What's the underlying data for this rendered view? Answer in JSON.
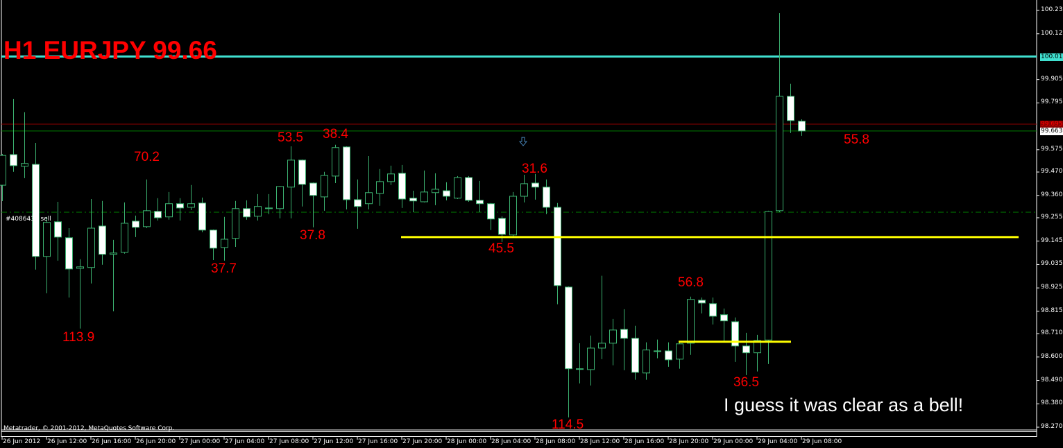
{
  "title": "H1 EURJPY 99.66",
  "copyright": "Metatrader, © 2001-2012, MetaQuotes Software Corp.",
  "order_label": "#4086432 sell",
  "comment": "I guess it was clear as a bell!",
  "colors": {
    "background": "#000000",
    "candle_outline": "#3cb371",
    "bear_fill": "#ffffff",
    "bull_fill": "#000000",
    "annotation": "#ff0000",
    "level_cyan": "#40e0d0",
    "level_red": "#8b0000",
    "bid_line": "#008000",
    "trendline": "#ffff00",
    "order_line": "#008000",
    "arrow": "#4682b4"
  },
  "annotations": [
    "70.2",
    "113.9",
    "53.5",
    "38.4",
    "37.8",
    "37.7",
    "31.6",
    "45.5",
    "114.5",
    "56.8",
    "36.5",
    "55.8"
  ],
  "chart_data": {
    "type": "candlestick",
    "symbol": "EURJPY",
    "timeframe": "H1",
    "ylim": [
      98.27,
      100.23
    ],
    "y_ticks": [
      "100.230",
      "100.120",
      "99.905",
      "99.795",
      "99.575",
      "99.470",
      "99.360",
      "99.255",
      "99.145",
      "99.035",
      "98.925",
      "98.815",
      "98.710",
      "98.600",
      "98.490",
      "98.380",
      "98.270"
    ],
    "x_ticks": [
      "26 Jun 2012",
      "26 Jun 12:00",
      "26 Jun 16:00",
      "26 Jun 20:00",
      "27 Jun 00:00",
      "27 Jun 04:00",
      "27 Jun 08:00",
      "27 Jun 12:00",
      "27 Jun 16:00",
      "27 Jun 20:00",
      "28 Jun 00:00",
      "28 Jun 04:00",
      "28 Jun 08:00",
      "28 Jun 12:00",
      "28 Jun 16:00",
      "28 Jun 20:00",
      "29 Jun 00:00",
      "29 Jun 04:00",
      "29 Jun 08:00"
    ],
    "price_markers": [
      {
        "label": "100.013",
        "price": 100.013,
        "style": "cyan"
      },
      {
        "label": "99.695",
        "price": 99.695,
        "style": "red"
      },
      {
        "label": "99.663",
        "price": 99.663,
        "style": "bid"
      }
    ],
    "levels": [
      {
        "price": 100.013,
        "style": "cyan"
      },
      {
        "price": 99.695,
        "style": "red"
      },
      {
        "price": 99.663,
        "style": "bid"
      },
      {
        "price": 99.281,
        "style": "order"
      }
    ],
    "trendlines": [
      {
        "from_bar": 36,
        "to_bar": "end",
        "price": 99.164
      },
      {
        "from_bar": 61,
        "to_bar": 71,
        "price": 98.672
      }
    ],
    "sell_arrow": {
      "bar": 47,
      "price": 99.61
    },
    "candles": [
      [
        99.408,
        99.555,
        99.333,
        99.548
      ],
      [
        99.552,
        99.813,
        99.471,
        99.5
      ],
      [
        99.497,
        99.751,
        99.441,
        99.51
      ],
      [
        99.506,
        99.607,
        99.011,
        99.073
      ],
      [
        99.073,
        99.259,
        98.9,
        99.233
      ],
      [
        99.236,
        99.33,
        99.053,
        99.164
      ],
      [
        99.161,
        99.206,
        98.88,
        99.014
      ],
      [
        99.017,
        99.06,
        98.734,
        99.024
      ],
      [
        99.021,
        99.343,
        98.946,
        99.206
      ],
      [
        99.216,
        99.334,
        99.034,
        99.083
      ],
      [
        99.083,
        99.151,
        98.815,
        99.089
      ],
      [
        99.092,
        99.327,
        99.086,
        99.229
      ],
      [
        99.239,
        99.265,
        99.164,
        99.21
      ],
      [
        99.213,
        99.435,
        99.206,
        99.288
      ],
      [
        99.285,
        99.347,
        99.242,
        99.255
      ],
      [
        99.259,
        99.376,
        99.246,
        99.321
      ],
      [
        99.321,
        99.347,
        99.242,
        99.301
      ],
      [
        99.304,
        99.409,
        99.291,
        99.321
      ],
      [
        99.324,
        99.35,
        99.187,
        99.197
      ],
      [
        99.197,
        99.2,
        99.056,
        99.112
      ],
      [
        99.115,
        99.259,
        99.053,
        99.154
      ],
      [
        99.158,
        99.334,
        99.118,
        99.298
      ],
      [
        99.298,
        99.337,
        99.246,
        99.259
      ],
      [
        99.262,
        99.366,
        99.242,
        99.308
      ],
      [
        99.301,
        99.366,
        99.272,
        99.301
      ],
      [
        99.298,
        99.405,
        99.252,
        99.402
      ],
      [
        99.399,
        99.591,
        99.252,
        99.526
      ],
      [
        99.526,
        99.529,
        99.308,
        99.412
      ],
      [
        99.418,
        99.421,
        99.21,
        99.36
      ],
      [
        99.353,
        99.471,
        99.288,
        99.454
      ],
      [
        99.451,
        99.598,
        99.418,
        99.585
      ],
      [
        99.588,
        99.591,
        99.294,
        99.34
      ],
      [
        99.34,
        99.435,
        99.203,
        99.308
      ],
      [
        99.321,
        99.545,
        99.294,
        99.373
      ],
      [
        99.369,
        99.484,
        99.311,
        99.425
      ],
      [
        99.425,
        99.5,
        99.409,
        99.461
      ],
      [
        99.464,
        99.503,
        99.301,
        99.343
      ],
      [
        99.347,
        99.382,
        99.281,
        99.334
      ],
      [
        99.33,
        99.477,
        99.327,
        99.376
      ],
      [
        99.373,
        99.464,
        99.314,
        99.389
      ],
      [
        99.382,
        99.422,
        99.337,
        99.356
      ],
      [
        99.347,
        99.451,
        99.343,
        99.444
      ],
      [
        99.444,
        99.451,
        99.33,
        99.337
      ],
      [
        99.337,
        99.428,
        99.281,
        99.321
      ],
      [
        99.321,
        99.324,
        99.197,
        99.249
      ],
      [
        99.252,
        99.262,
        99.141,
        99.177
      ],
      [
        99.174,
        99.376,
        99.167,
        99.356
      ],
      [
        99.356,
        99.457,
        99.327,
        99.415
      ],
      [
        99.418,
        99.461,
        99.34,
        99.399
      ],
      [
        99.399,
        99.435,
        99.272,
        99.304
      ],
      [
        99.304,
        99.324,
        98.848,
        98.936
      ],
      [
        98.929,
        98.932,
        98.316,
        98.545
      ],
      [
        98.545,
        98.665,
        98.476,
        98.545
      ],
      [
        98.541,
        98.701,
        98.466,
        98.642
      ],
      [
        98.642,
        98.982,
        98.59,
        98.665
      ],
      [
        98.665,
        98.779,
        98.561,
        98.727
      ],
      [
        98.73,
        98.825,
        98.538,
        98.688
      ],
      [
        98.688,
        98.747,
        98.493,
        98.528
      ],
      [
        98.525,
        98.669,
        98.493,
        98.633
      ],
      [
        98.629,
        98.682,
        98.594,
        98.629
      ],
      [
        98.629,
        98.669,
        98.554,
        98.587
      ],
      [
        98.59,
        98.675,
        98.545,
        98.662
      ],
      [
        98.665,
        98.884,
        98.61,
        98.871
      ],
      [
        98.867,
        98.88,
        98.805,
        98.854
      ],
      [
        98.851,
        98.88,
        98.753,
        98.792
      ],
      [
        98.799,
        98.828,
        98.675,
        98.77
      ],
      [
        98.766,
        98.786,
        98.577,
        98.652
      ],
      [
        98.652,
        98.714,
        98.515,
        98.62
      ],
      [
        98.62,
        98.704,
        98.532,
        98.678
      ],
      [
        98.68,
        99.288,
        98.567,
        99.285
      ],
      [
        99.288,
        100.217,
        99.281,
        99.826
      ],
      [
        99.826,
        99.885,
        99.653,
        99.712
      ],
      [
        99.709,
        99.718,
        99.64,
        99.663
      ]
    ]
  }
}
